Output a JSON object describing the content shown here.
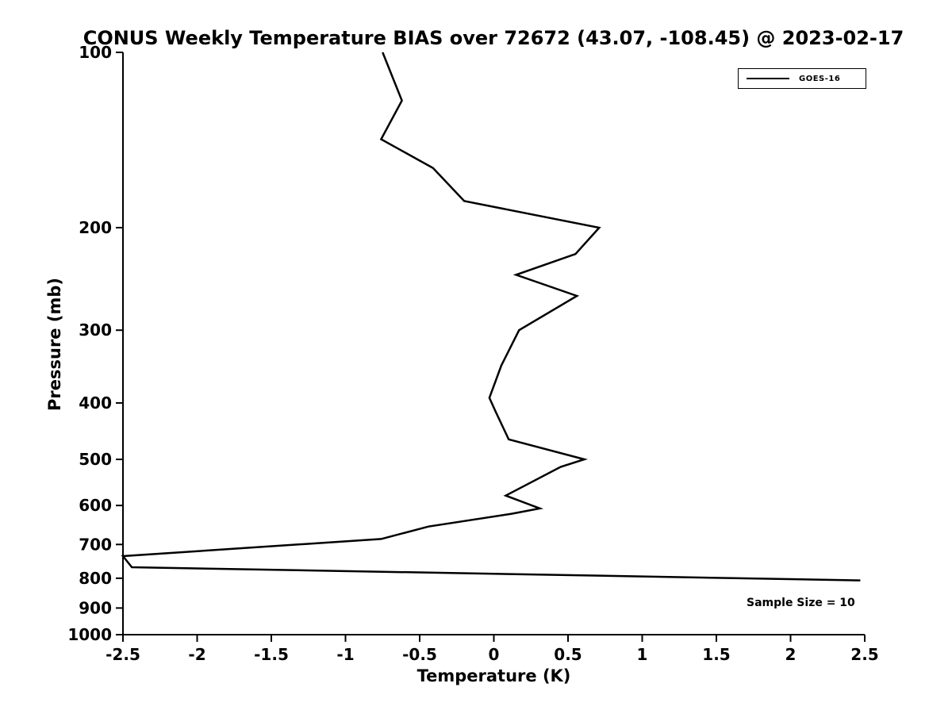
{
  "chart_data": {
    "type": "line",
    "title": "CONUS Weekly Temperature BIAS over 72672 (43.07, -108.45) @ 2023-02-17",
    "xlabel": "Temperature (K)",
    "ylabel": "Pressure (mb)",
    "xlim": [
      -2.5,
      2.5
    ],
    "ylim": [
      100,
      1000
    ],
    "yscale": "log",
    "grid": false,
    "x_ticks": [
      -2.5,
      -2,
      -1.5,
      -1,
      -0.5,
      0,
      0.5,
      1,
      1.5,
      2,
      2.5
    ],
    "y_ticks": [
      100,
      200,
      300,
      400,
      500,
      600,
      700,
      800,
      900,
      1000
    ],
    "legend_position": "top-right",
    "legend_label": "GOES-16",
    "annotation": "Sample Size = 10",
    "axis_color": "#000000",
    "series": [
      {
        "name": "GOES-16",
        "color": "#000000",
        "linewidth": 2.5,
        "points_temperature_pressure": [
          [
            -0.75,
            100
          ],
          [
            -0.62,
            121
          ],
          [
            -0.76,
            141
          ],
          [
            -0.41,
            158
          ],
          [
            -0.2,
            180
          ],
          [
            0.71,
            200
          ],
          [
            0.55,
            222
          ],
          [
            0.15,
            241
          ],
          [
            0.56,
            262
          ],
          [
            0.17,
            300
          ],
          [
            0.05,
            345
          ],
          [
            -0.03,
            392
          ],
          [
            0.01,
            413
          ],
          [
            0.1,
            462
          ],
          [
            0.61,
            500
          ],
          [
            0.45,
            515
          ],
          [
            0.08,
            577
          ],
          [
            0.31,
            607
          ],
          [
            0.12,
            620
          ],
          [
            -0.44,
            652
          ],
          [
            -0.76,
            685
          ],
          [
            -2.5,
            733
          ],
          [
            -2.44,
            766
          ],
          [
            2.47,
            807
          ]
        ]
      }
    ]
  }
}
